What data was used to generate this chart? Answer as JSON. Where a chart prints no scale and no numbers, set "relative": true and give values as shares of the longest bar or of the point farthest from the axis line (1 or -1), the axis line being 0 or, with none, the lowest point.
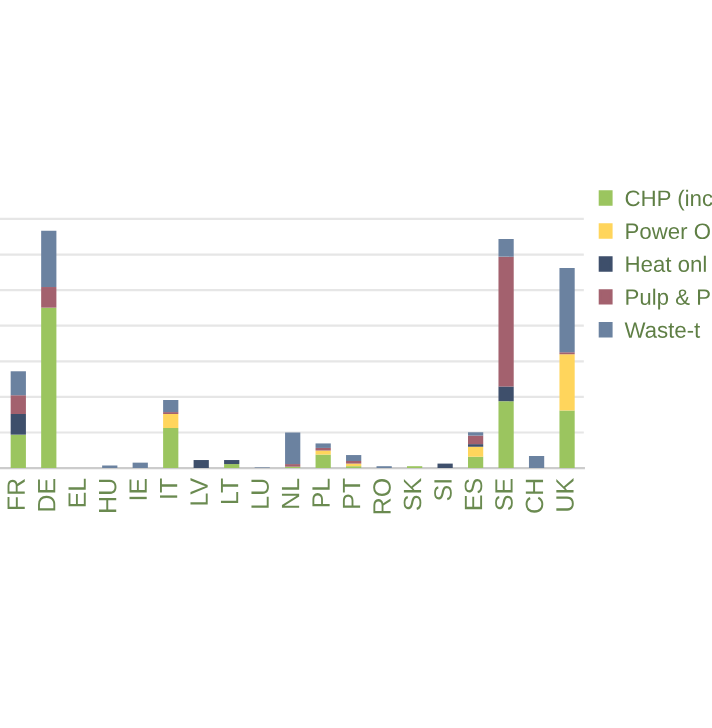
{
  "chart_data": {
    "type": "bar",
    "stacked": true,
    "relative": true,
    "grid": "y",
    "legend": "right",
    "categories": [
      "FR",
      "DE",
      "EL",
      "HU",
      "IE",
      "IT",
      "LV",
      "LT",
      "LU",
      "NL",
      "PL",
      "PT",
      "RO",
      "SK",
      "SI",
      "ES",
      "SE",
      "CH",
      "UK"
    ],
    "series": [
      {
        "name": "CHP (inc",
        "color": "#9bc55f",
        "values": [
          0.141,
          0.676,
          0,
          0,
          0,
          0.169,
          0,
          0.017,
          0,
          0.006,
          0.057,
          0.008,
          0,
          0.008,
          0,
          0.048,
          0.282,
          0,
          0.243
        ]
      },
      {
        "name": "Power O",
        "color": "#ffd55c",
        "values": [
          0,
          0,
          0,
          0,
          0,
          0.059,
          0,
          0,
          0,
          0,
          0.017,
          0.011,
          0,
          0,
          0,
          0.042,
          0,
          0,
          0.237
        ]
      },
      {
        "name": "Heat onl",
        "color": "#3e4f6b",
        "values": [
          0.087,
          0,
          0,
          0,
          0,
          0,
          0.034,
          0.017,
          0,
          0,
          0,
          0,
          0,
          0,
          0.019,
          0.011,
          0.062,
          0,
          0
        ]
      },
      {
        "name": "Pulp & P",
        "color": "#a3616e",
        "values": [
          0.079,
          0.087,
          0,
          0,
          0,
          0.008,
          0,
          0,
          0,
          0.011,
          0.011,
          0.011,
          0,
          0,
          0,
          0.036,
          0.547,
          0,
          0.008
        ]
      },
      {
        "name": "Waste-t",
        "color": "#6b82a0",
        "values": [
          0.101,
          0.237,
          0,
          0.011,
          0.023,
          0.051,
          0,
          0,
          0.003,
          0.133,
          0.019,
          0.025,
          0.008,
          0,
          0,
          0.014,
          0.074,
          0.051,
          0.355
        ]
      }
    ]
  }
}
